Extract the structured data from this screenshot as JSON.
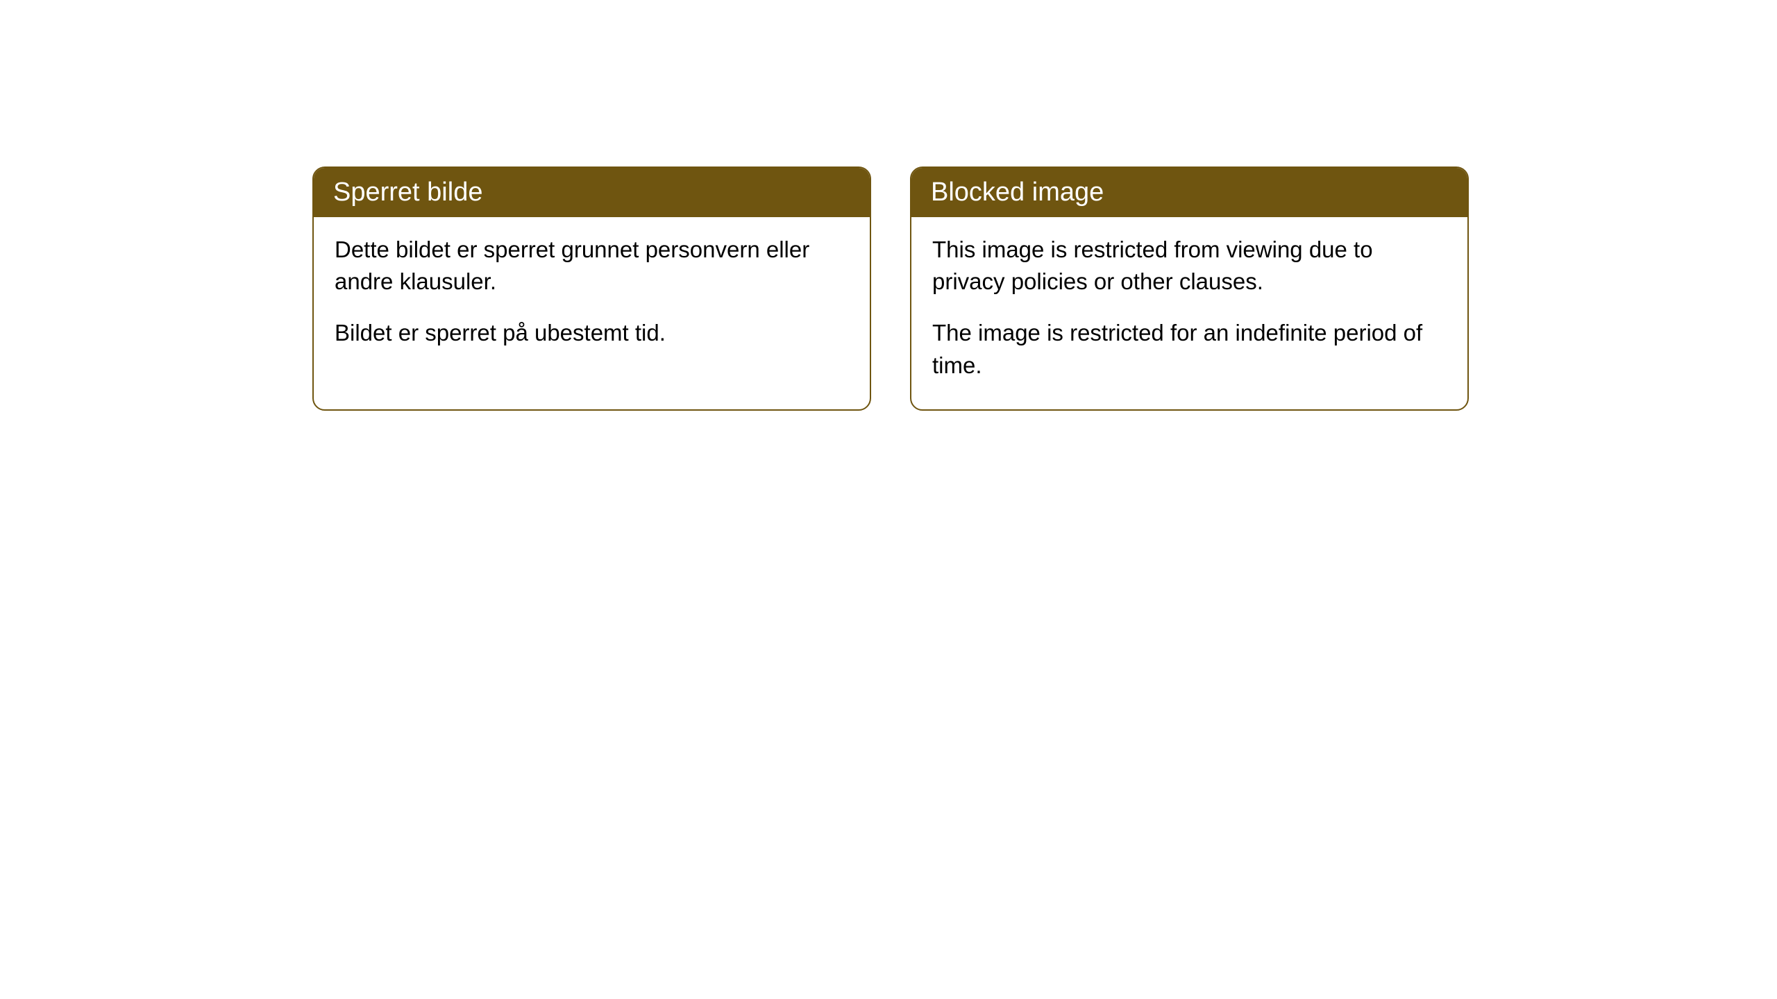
{
  "cards": [
    {
      "title": "Sperret bilde",
      "paragraph1": "Dette bildet er sperret grunnet personvern eller andre klausuler.",
      "paragraph2": "Bildet er sperret på ubestemt tid."
    },
    {
      "title": "Blocked image",
      "paragraph1": "This image is restricted from viewing due to privacy policies or other clauses.",
      "paragraph2": "The image is restricted for an indefinite period of time."
    }
  ],
  "style": {
    "header_background": "#6f5510",
    "header_text_color": "#ffffff",
    "border_color": "#6f5510",
    "body_background": "#ffffff",
    "body_text_color": "#000000",
    "border_radius": 18,
    "title_fontsize": 38,
    "body_fontsize": 33
  }
}
